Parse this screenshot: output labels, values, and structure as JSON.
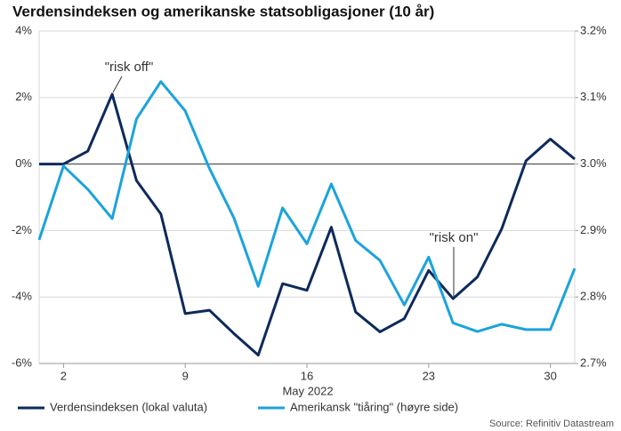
{
  "chart_data": {
    "type": "line",
    "title": "Verdensindeksen og amerikanske statsobligasjoner (10 år)",
    "x_label": "May 2022",
    "categories": [
      null,
      "2",
      null,
      null,
      null,
      null,
      "9",
      null,
      null,
      null,
      null,
      "16",
      null,
      null,
      null,
      null,
      "23",
      null,
      null,
      null,
      null,
      "30",
      null
    ],
    "series": [
      {
        "name": "Verdensindeksen (lokal valuta)",
        "color": "#0d2a5c",
        "values": [
          0,
          0,
          0.39,
          2.1,
          -0.5,
          -1.5,
          -4.5,
          -4.4,
          -5.1,
          -5.75,
          -3.6,
          -3.8,
          -1.9,
          -4.45,
          -5.05,
          -4.65,
          -3.2,
          -4.05,
          -3.4,
          -1.95,
          0.1,
          0.75,
          0.15
        ]
      },
      {
        "name": "Amerikansk \"tiåring\" (høyre side)",
        "color": "#1ba3dc",
        "axis": "y2",
        "values": [
          2.886,
          2.997,
          2.962,
          2.918,
          3.068,
          3.124,
          3.08,
          2.993,
          2.919,
          2.816,
          2.934,
          2.88,
          2.97,
          2.885,
          2.855,
          2.788,
          2.86,
          2.761,
          2.748,
          2.759,
          2.751,
          2.751,
          2.843
        ]
      }
    ],
    "ylim": [
      -6,
      4
    ],
    "yticks": [
      {
        "value": -6,
        "label": "-6%"
      },
      {
        "value": -4,
        "label": "-4%"
      },
      {
        "value": -2,
        "label": "-2%"
      },
      {
        "value": 0,
        "label": "0%"
      },
      {
        "value": 2,
        "label": "2%"
      },
      {
        "value": 4,
        "label": "4%"
      }
    ],
    "y2lim": [
      2.7,
      3.2
    ],
    "y2ticks": [
      {
        "value": 2.7,
        "label": "2.7%"
      },
      {
        "value": 2.8,
        "label": "2.8%"
      },
      {
        "value": 2.9,
        "label": "2.9%"
      },
      {
        "value": 3.0,
        "label": "3.0%"
      },
      {
        "value": 3.1,
        "label": "3.1%"
      },
      {
        "value": 3.2,
        "label": "3.2%"
      }
    ],
    "grid": true,
    "annotations": [
      {
        "text": "\"risk off\""
      },
      {
        "text": "\"risk on\""
      }
    ],
    "source": "Source: Refinitiv Datastream"
  }
}
